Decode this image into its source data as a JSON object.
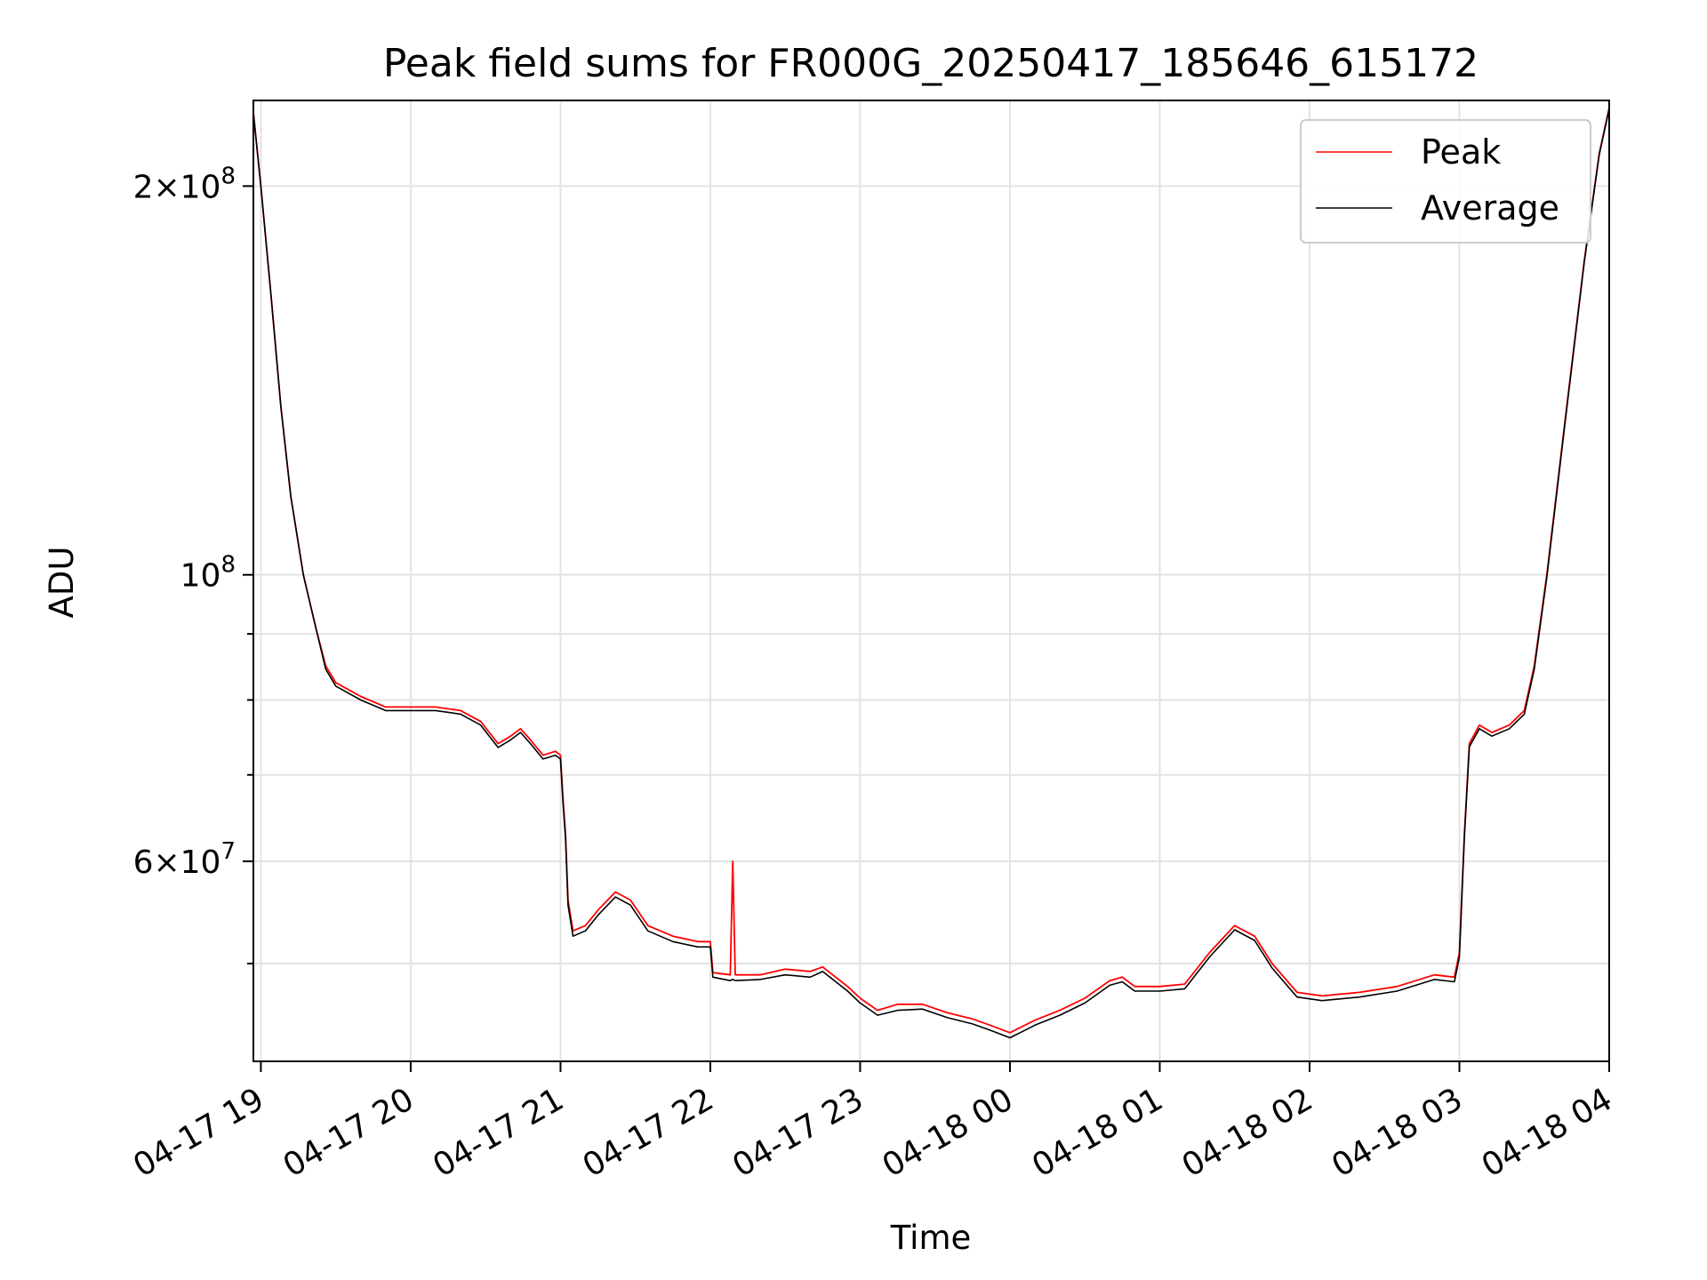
{
  "chart_data": {
    "type": "line",
    "title": "Peak field sums for FR000G_20250417_185646_615172",
    "xlabel": "Time",
    "ylabel": "ADU",
    "yscale": "log",
    "ylim": [
      42000000,
      233000000
    ],
    "xlim": [
      "2025-04-17T18:57",
      "2025-04-18T04:00"
    ],
    "grid": true,
    "legend_position": "top-right",
    "x_ticks": [
      {
        "t": "2025-04-17T19:00",
        "label": "04-17 19"
      },
      {
        "t": "2025-04-17T20:00",
        "label": "04-17 20"
      },
      {
        "t": "2025-04-17T21:00",
        "label": "04-17 21"
      },
      {
        "t": "2025-04-17T22:00",
        "label": "04-17 22"
      },
      {
        "t": "2025-04-17T23:00",
        "label": "04-17 23"
      },
      {
        "t": "2025-04-18T00:00",
        "label": "04-18 00"
      },
      {
        "t": "2025-04-18T01:00",
        "label": "04-18 01"
      },
      {
        "t": "2025-04-18T02:00",
        "label": "04-18 02"
      },
      {
        "t": "2025-04-18T03:00",
        "label": "04-18 03"
      },
      {
        "t": "2025-04-18T04:00",
        "label": "04-18 04"
      }
    ],
    "y_major_ticks": [
      {
        "value": 60000000,
        "mantissa": "6",
        "base": "10",
        "exp": "7"
      },
      {
        "value": 100000000,
        "mantissa": "",
        "base": "10",
        "exp": "8"
      },
      {
        "value": 200000000,
        "mantissa": "2",
        "base": "10",
        "exp": "8"
      }
    ],
    "y_minor_ticks": [
      50000000,
      70000000,
      80000000,
      90000000
    ],
    "series": [
      {
        "name": "Peak",
        "color": "#ff0000",
        "points": [
          [
            "2025-04-17T18:57",
            228000000
          ],
          [
            "2025-04-17T19:00",
            200000000
          ],
          [
            "2025-04-17T19:04",
            165000000
          ],
          [
            "2025-04-17T19:08",
            135000000
          ],
          [
            "2025-04-17T19:12",
            115000000
          ],
          [
            "2025-04-17T19:17",
            100000000
          ],
          [
            "2025-04-17T19:22",
            91000000
          ],
          [
            "2025-04-17T19:26",
            85000000
          ],
          [
            "2025-04-17T19:30",
            82500000
          ],
          [
            "2025-04-17T19:40",
            80500000
          ],
          [
            "2025-04-17T19:50",
            79000000
          ],
          [
            "2025-04-17T20:00",
            79000000
          ],
          [
            "2025-04-17T20:10",
            79000000
          ],
          [
            "2025-04-17T20:20",
            78500000
          ],
          [
            "2025-04-17T20:28",
            77000000
          ],
          [
            "2025-04-17T20:35",
            74000000
          ],
          [
            "2025-04-17T20:40",
            75000000
          ],
          [
            "2025-04-17T20:44",
            76000000
          ],
          [
            "2025-04-17T20:48",
            74500000
          ],
          [
            "2025-04-17T20:53",
            72500000
          ],
          [
            "2025-04-17T20:58",
            73000000
          ],
          [
            "2025-04-17T21:00",
            72500000
          ],
          [
            "2025-04-17T21:01",
            67000000
          ],
          [
            "2025-04-17T21:02",
            63000000
          ],
          [
            "2025-04-17T21:03",
            56000000
          ],
          [
            "2025-04-17T21:05",
            53000000
          ],
          [
            "2025-04-17T21:10",
            53500000
          ],
          [
            "2025-04-17T21:15",
            55000000
          ],
          [
            "2025-04-17T21:22",
            56800000
          ],
          [
            "2025-04-17T21:28",
            56000000
          ],
          [
            "2025-04-17T21:35",
            53500000
          ],
          [
            "2025-04-17T21:45",
            52500000
          ],
          [
            "2025-04-17T21:55",
            52000000
          ],
          [
            "2025-04-17T22:00",
            52000000
          ],
          [
            "2025-04-17T22:01",
            49200000
          ],
          [
            "2025-04-17T22:08",
            49000000
          ],
          [
            "2025-04-17T22:09",
            60000000
          ],
          [
            "2025-04-17T22:10",
            49000000
          ],
          [
            "2025-04-17T22:20",
            49000000
          ],
          [
            "2025-04-17T22:30",
            49500000
          ],
          [
            "2025-04-17T22:40",
            49300000
          ],
          [
            "2025-04-17T22:45",
            49700000
          ],
          [
            "2025-04-17T22:55",
            48000000
          ],
          [
            "2025-04-17T23:00",
            47000000
          ],
          [
            "2025-04-17T23:07",
            46000000
          ],
          [
            "2025-04-17T23:15",
            46500000
          ],
          [
            "2025-04-17T23:25",
            46500000
          ],
          [
            "2025-04-17T23:35",
            45800000
          ],
          [
            "2025-04-17T23:45",
            45300000
          ],
          [
            "2025-04-17T23:52",
            44800000
          ],
          [
            "2025-04-18T00:00",
            44200000
          ],
          [
            "2025-04-18T00:10",
            45200000
          ],
          [
            "2025-04-18T00:20",
            46000000
          ],
          [
            "2025-04-18T00:30",
            47000000
          ],
          [
            "2025-04-18T00:40",
            48500000
          ],
          [
            "2025-04-18T00:45",
            48800000
          ],
          [
            "2025-04-18T00:50",
            48000000
          ],
          [
            "2025-04-18T01:00",
            48000000
          ],
          [
            "2025-04-18T01:10",
            48200000
          ],
          [
            "2025-04-18T01:20",
            51000000
          ],
          [
            "2025-04-18T01:30",
            53500000
          ],
          [
            "2025-04-18T01:38",
            52500000
          ],
          [
            "2025-04-18T01:45",
            50000000
          ],
          [
            "2025-04-18T01:55",
            47500000
          ],
          [
            "2025-04-18T02:05",
            47200000
          ],
          [
            "2025-04-18T02:20",
            47500000
          ],
          [
            "2025-04-18T02:35",
            48000000
          ],
          [
            "2025-04-18T02:50",
            49000000
          ],
          [
            "2025-04-18T02:58",
            48800000
          ],
          [
            "2025-04-18T03:00",
            51000000
          ],
          [
            "2025-04-18T03:02",
            63000000
          ],
          [
            "2025-04-18T03:04",
            74000000
          ],
          [
            "2025-04-18T03:08",
            76500000
          ],
          [
            "2025-04-18T03:13",
            75500000
          ],
          [
            "2025-04-18T03:20",
            76500000
          ],
          [
            "2025-04-18T03:26",
            78500000
          ],
          [
            "2025-04-18T03:30",
            85000000
          ],
          [
            "2025-04-18T03:35",
            100000000
          ],
          [
            "2025-04-18T03:42",
            130000000
          ],
          [
            "2025-04-18T03:50",
            175000000
          ],
          [
            "2025-04-18T03:56",
            212000000
          ],
          [
            "2025-04-18T04:00",
            230000000
          ]
        ]
      },
      {
        "name": "Average",
        "color": "#000000",
        "points": [
          [
            "2025-04-17T18:57",
            228000000
          ],
          [
            "2025-04-17T19:00",
            200000000
          ],
          [
            "2025-04-17T19:04",
            165000000
          ],
          [
            "2025-04-17T19:08",
            135000000
          ],
          [
            "2025-04-17T19:12",
            115000000
          ],
          [
            "2025-04-17T19:17",
            100000000
          ],
          [
            "2025-04-17T19:22",
            91000000
          ],
          [
            "2025-04-17T19:26",
            84500000
          ],
          [
            "2025-04-17T19:30",
            82000000
          ],
          [
            "2025-04-17T19:40",
            80000000
          ],
          [
            "2025-04-17T19:50",
            78500000
          ],
          [
            "2025-04-17T20:00",
            78500000
          ],
          [
            "2025-04-17T20:10",
            78500000
          ],
          [
            "2025-04-17T20:20",
            78000000
          ],
          [
            "2025-04-17T20:28",
            76500000
          ],
          [
            "2025-04-17T20:35",
            73500000
          ],
          [
            "2025-04-17T20:40",
            74500000
          ],
          [
            "2025-04-17T20:44",
            75500000
          ],
          [
            "2025-04-17T20:48",
            74000000
          ],
          [
            "2025-04-17T20:53",
            72000000
          ],
          [
            "2025-04-17T20:58",
            72500000
          ],
          [
            "2025-04-17T21:00",
            72000000
          ],
          [
            "2025-04-17T21:01",
            66500000
          ],
          [
            "2025-04-17T21:02",
            62500000
          ],
          [
            "2025-04-17T21:03",
            55500000
          ],
          [
            "2025-04-17T21:05",
            52500000
          ],
          [
            "2025-04-17T21:10",
            53000000
          ],
          [
            "2025-04-17T21:15",
            54500000
          ],
          [
            "2025-04-17T21:22",
            56300000
          ],
          [
            "2025-04-17T21:28",
            55500000
          ],
          [
            "2025-04-17T21:35",
            53000000
          ],
          [
            "2025-04-17T21:45",
            52000000
          ],
          [
            "2025-04-17T21:55",
            51500000
          ],
          [
            "2025-04-17T22:00",
            51500000
          ],
          [
            "2025-04-17T22:01",
            48800000
          ],
          [
            "2025-04-17T22:08",
            48500000
          ],
          [
            "2025-04-17T22:09",
            48600000
          ],
          [
            "2025-04-17T22:10",
            48500000
          ],
          [
            "2025-04-17T22:20",
            48600000
          ],
          [
            "2025-04-17T22:30",
            49000000
          ],
          [
            "2025-04-17T22:40",
            48800000
          ],
          [
            "2025-04-17T22:45",
            49300000
          ],
          [
            "2025-04-17T22:55",
            47600000
          ],
          [
            "2025-04-17T23:00",
            46600000
          ],
          [
            "2025-04-17T23:07",
            45600000
          ],
          [
            "2025-04-17T23:15",
            46000000
          ],
          [
            "2025-04-17T23:25",
            46100000
          ],
          [
            "2025-04-17T23:35",
            45400000
          ],
          [
            "2025-04-17T23:45",
            44900000
          ],
          [
            "2025-04-17T23:52",
            44400000
          ],
          [
            "2025-04-18T00:00",
            43800000
          ],
          [
            "2025-04-18T00:10",
            44800000
          ],
          [
            "2025-04-18T00:20",
            45600000
          ],
          [
            "2025-04-18T00:30",
            46600000
          ],
          [
            "2025-04-18T00:40",
            48100000
          ],
          [
            "2025-04-18T00:45",
            48400000
          ],
          [
            "2025-04-18T00:50",
            47600000
          ],
          [
            "2025-04-18T01:00",
            47600000
          ],
          [
            "2025-04-18T01:10",
            47800000
          ],
          [
            "2025-04-18T01:20",
            50600000
          ],
          [
            "2025-04-18T01:30",
            53100000
          ],
          [
            "2025-04-18T01:38",
            52100000
          ],
          [
            "2025-04-18T01:45",
            49600000
          ],
          [
            "2025-04-18T01:55",
            47100000
          ],
          [
            "2025-04-18T02:05",
            46800000
          ],
          [
            "2025-04-18T02:20",
            47100000
          ],
          [
            "2025-04-18T02:35",
            47600000
          ],
          [
            "2025-04-18T02:50",
            48600000
          ],
          [
            "2025-04-18T02:58",
            48400000
          ],
          [
            "2025-04-18T03:00",
            50600000
          ],
          [
            "2025-04-18T03:02",
            62600000
          ],
          [
            "2025-04-18T03:04",
            73600000
          ],
          [
            "2025-04-18T03:08",
            76000000
          ],
          [
            "2025-04-18T03:13",
            75000000
          ],
          [
            "2025-04-18T03:20",
            76000000
          ],
          [
            "2025-04-18T03:26",
            78000000
          ],
          [
            "2025-04-18T03:30",
            84500000
          ],
          [
            "2025-04-18T03:35",
            99500000
          ],
          [
            "2025-04-18T03:42",
            129500000
          ],
          [
            "2025-04-18T03:50",
            174500000
          ],
          [
            "2025-04-18T03:56",
            211500000
          ],
          [
            "2025-04-18T04:00",
            229500000
          ]
        ]
      }
    ]
  }
}
